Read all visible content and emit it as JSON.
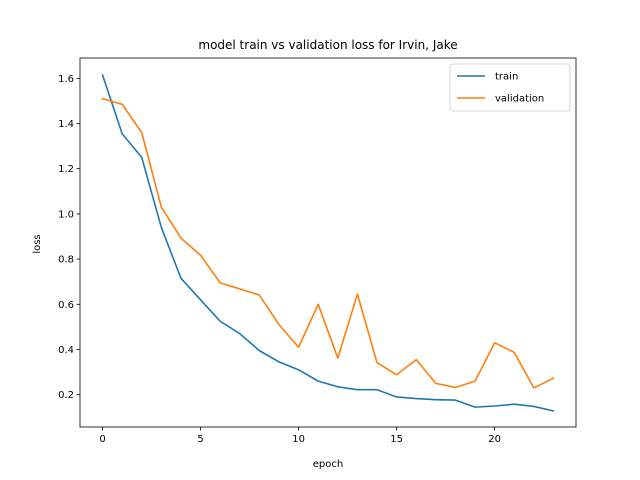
{
  "chart_data": {
    "type": "line",
    "title": "model train vs validation loss for Irvin, Jake",
    "xlabel": "epoch",
    "ylabel": "loss",
    "xlim": [
      -1.15,
      24.15
    ],
    "ylim": [
      0.057,
      1.69
    ],
    "xticks": [
      0,
      5,
      10,
      15,
      20
    ],
    "yticks": [
      0.2,
      0.4,
      0.6,
      0.8,
      1.0,
      1.2,
      1.4,
      1.6
    ],
    "grid": false,
    "legend_position": "top-right",
    "x": [
      0,
      1,
      2,
      3,
      4,
      5,
      6,
      7,
      8,
      9,
      10,
      11,
      12,
      13,
      14,
      15,
      16,
      17,
      18,
      19,
      20,
      21,
      22,
      23
    ],
    "series": [
      {
        "name": "train",
        "color": "#1f77b4",
        "values": [
          1.615,
          1.355,
          1.25,
          0.94,
          0.715,
          0.62,
          0.525,
          0.47,
          0.395,
          0.345,
          0.31,
          0.26,
          0.235,
          0.222,
          0.222,
          0.19,
          0.183,
          0.178,
          0.176,
          0.145,
          0.15,
          0.158,
          0.148,
          0.128
        ]
      },
      {
        "name": "validation",
        "color": "#ff7f0e",
        "values": [
          1.51,
          1.485,
          1.36,
          1.03,
          0.893,
          0.817,
          0.695,
          0.668,
          0.641,
          0.51,
          0.41,
          0.6,
          0.362,
          0.645,
          0.342,
          0.288,
          0.355,
          0.25,
          0.232,
          0.26,
          0.43,
          0.387,
          0.23,
          0.273
        ]
      }
    ]
  }
}
